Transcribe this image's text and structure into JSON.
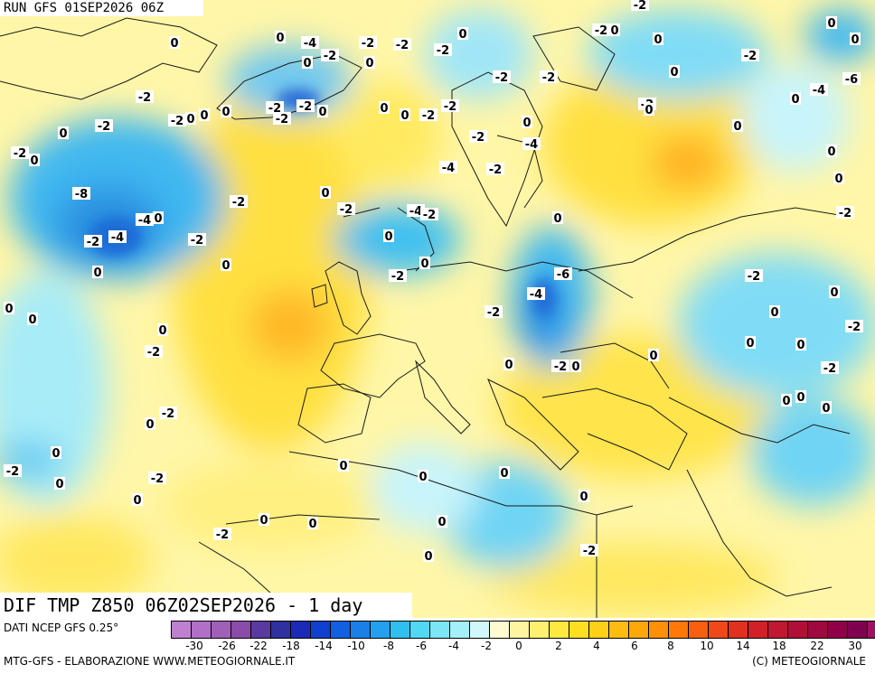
{
  "header": {
    "run_title": "RUN GFS 01SEP2026 06Z"
  },
  "product_title": "DIF TMP Z850 06Z02SEP2026 - 1 day",
  "legend": {
    "data_source": "DATI NCEP GFS 0.25°",
    "scale_labels": [
      "-30",
      "-26",
      "-22",
      "-18",
      "-14",
      "-10",
      "-8",
      "-6",
      "-4",
      "-2",
      "0",
      "2",
      "4",
      "6",
      "8",
      "10",
      "14",
      "18",
      "22",
      "30"
    ],
    "scale_colors": [
      "#c080d0",
      "#b070c8",
      "#a060b8",
      "#8a4ca8",
      "#5a3aa0",
      "#3030a0",
      "#1c2ab8",
      "#1040d0",
      "#1060e0",
      "#1a80e8",
      "#24a0f0",
      "#30c0f0",
      "#50d8f4",
      "#7ae6f6",
      "#a4f0f8",
      "#d0f8fc",
      "#fffad0",
      "#fff4a0",
      "#fff070",
      "#ffe840",
      "#ffe020",
      "#ffd018",
      "#ffbc10",
      "#ffa808",
      "#ff9008",
      "#ff7808",
      "#f86010",
      "#f04818",
      "#e03020",
      "#d02028",
      "#c01830",
      "#b01038",
      "#a00840",
      "#900048",
      "#800050",
      "#a01060"
    ],
    "footer_left": "MTG-GFS - ELABORAZIONE WWW.METEOGIORNALE.IT",
    "footer_right": "(C) METEOGIORNALE"
  },
  "map_labels": [
    "0",
    "-4",
    "-2",
    "-2",
    "0",
    "-2",
    "-2",
    "0",
    "0",
    "-2",
    "-2",
    "0",
    "-2",
    "-2",
    "0",
    "0",
    "-2",
    "0",
    "0",
    "-6",
    "-4",
    "0",
    "-2",
    "0",
    "0",
    "0",
    "-2",
    "-2",
    "-2",
    "0",
    "-2",
    "0",
    "0",
    "0",
    "-2",
    "-2",
    "-2",
    "0",
    "0",
    "-2",
    "0",
    "-2",
    "-2",
    "0",
    "-2",
    "-4",
    "-4",
    "0",
    "-2",
    "-4",
    "-2",
    "0",
    "0",
    "-2",
    "-8",
    "-4",
    "0",
    "-4",
    "-2",
    "-2",
    "0",
    "0",
    "-2",
    "0",
    "-6",
    "-4",
    "-2",
    "0",
    "-2",
    "0",
    "0",
    "0",
    "0",
    "0",
    "-2",
    "0",
    "0",
    "-2",
    "0",
    "0",
    "-2",
    "-2",
    "0",
    "0",
    "0",
    "0",
    "0",
    "0",
    "-2",
    "-2",
    "0",
    "0",
    "-2",
    "0",
    "0",
    "-2",
    "0",
    "0",
    "0",
    "0",
    "0",
    "0",
    "0",
    "-2",
    "-2",
    "0"
  ]
}
